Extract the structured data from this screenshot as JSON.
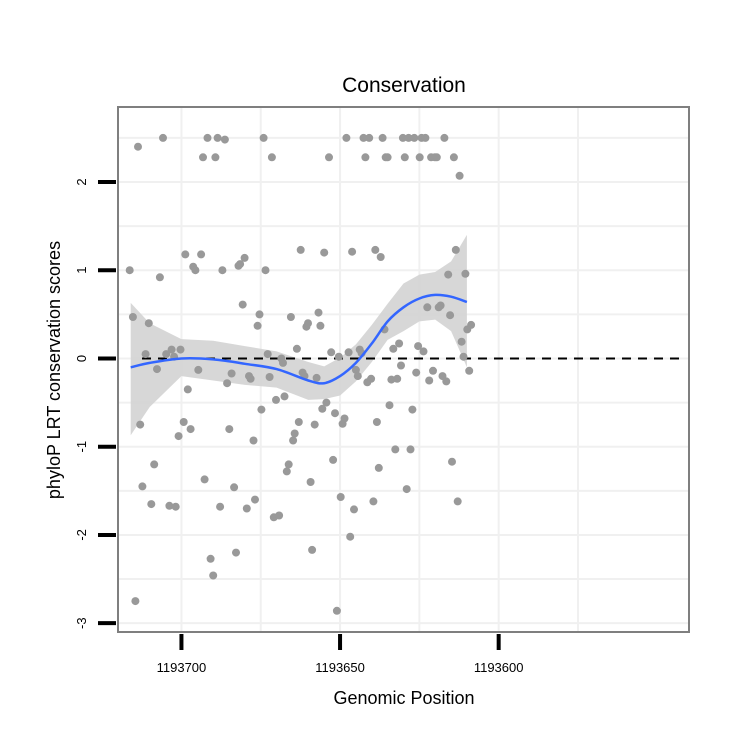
{
  "chart_data": {
    "type": "scatter",
    "title": "Conservation",
    "xlabel": "Genomic Position",
    "ylabel": "phyloP LRT conservation scores",
    "x_reversed": true,
    "xlim": [
      1193720,
      1193540
    ],
    "ylim": [
      -3.1,
      2.85
    ],
    "x_ticks": [
      1193700,
      1193650,
      1193600
    ],
    "x_tick_labels": [
      "1193700",
      "1193650",
      "1193600"
    ],
    "y_ticks": [
      -3,
      -2,
      -1,
      0,
      1,
      2
    ],
    "y_tick_labels": [
      "-3",
      "-2",
      "-1",
      "0",
      "1",
      "2"
    ],
    "reference_line": {
      "y": 0,
      "style": "dashed"
    },
    "colors": {
      "points": "#999999",
      "smooth_line": "#3366ff",
      "confidence_band": "#d3d3d3",
      "grid": "#f0f0f0",
      "panel_border": "#7f7f7f"
    },
    "points": [
      [
        1193716.3,
        1.0
      ],
      [
        1193715.3,
        0.47
      ],
      [
        1193714.5,
        -2.75
      ],
      [
        1193713.7,
        2.4
      ],
      [
        1193713.0,
        -0.75
      ],
      [
        1193712.3,
        -1.45
      ],
      [
        1193711.3,
        0.05
      ],
      [
        1193710.3,
        0.4
      ],
      [
        1193709.5,
        -1.65
      ],
      [
        1193708.6,
        -1.2
      ],
      [
        1193707.7,
        -0.12
      ],
      [
        1193706.8,
        0.92
      ],
      [
        1193705.8,
        2.5
      ],
      [
        1193704.8,
        0.05
      ],
      [
        1193703.8,
        -1.67
      ],
      [
        1193703.1,
        0.1
      ],
      [
        1193702.3,
        0.02
      ],
      [
        1193701.8,
        -1.68
      ],
      [
        1193700.9,
        -0.88
      ],
      [
        1193700.3,
        0.1
      ],
      [
        1193699.3,
        -0.72
      ],
      [
        1193698.8,
        1.18
      ],
      [
        1193698.0,
        -0.35
      ],
      [
        1193697.1,
        -0.8
      ],
      [
        1193696.3,
        1.04
      ],
      [
        1193695.6,
        1.0
      ],
      [
        1193694.7,
        -0.13
      ],
      [
        1193693.8,
        1.18
      ],
      [
        1193693.2,
        2.28
      ],
      [
        1193692.7,
        -1.37
      ],
      [
        1193691.8,
        2.5
      ],
      [
        1193690.8,
        -2.27
      ],
      [
        1193690.0,
        -2.46
      ],
      [
        1193689.3,
        2.28
      ],
      [
        1193688.6,
        2.5
      ],
      [
        1193687.8,
        -1.68
      ],
      [
        1193687.1,
        1.0
      ],
      [
        1193686.3,
        2.48
      ],
      [
        1193685.6,
        -0.28
      ],
      [
        1193684.9,
        -0.8
      ],
      [
        1193684.2,
        -0.17
      ],
      [
        1193683.4,
        -1.46
      ],
      [
        1193682.8,
        -2.2
      ],
      [
        1193682.0,
        1.05
      ],
      [
        1193681.5,
        1.07
      ],
      [
        1193680.7,
        0.61
      ],
      [
        1193680.1,
        1.14
      ],
      [
        1193679.4,
        -1.7
      ],
      [
        1193678.7,
        -0.2
      ],
      [
        1193678.2,
        -0.23
      ],
      [
        1193677.3,
        -0.93
      ],
      [
        1193676.8,
        -1.6
      ],
      [
        1193676.0,
        0.37
      ],
      [
        1193675.4,
        0.5
      ],
      [
        1193674.8,
        -0.58
      ],
      [
        1193674.1,
        2.5
      ],
      [
        1193673.5,
        1.0
      ],
      [
        1193672.8,
        0.05
      ],
      [
        1193672.2,
        -0.21
      ],
      [
        1193671.5,
        2.28
      ],
      [
        1193670.9,
        -1.8
      ],
      [
        1193670.2,
        -0.47
      ],
      [
        1193669.2,
        -1.78
      ],
      [
        1193668.5,
        0.0
      ],
      [
        1193668.0,
        -0.05
      ],
      [
        1193667.5,
        -0.43
      ],
      [
        1193666.8,
        -1.28
      ],
      [
        1193666.2,
        -1.2
      ],
      [
        1193665.5,
        0.47
      ],
      [
        1193664.8,
        -0.93
      ],
      [
        1193664.3,
        -0.85
      ],
      [
        1193663.6,
        0.11
      ],
      [
        1193663.0,
        -0.72
      ],
      [
        1193662.4,
        1.23
      ],
      [
        1193661.8,
        -0.16
      ],
      [
        1193661.2,
        -0.2
      ],
      [
        1193660.6,
        0.36
      ],
      [
        1193660.1,
        0.4
      ],
      [
        1193659.3,
        -1.4
      ],
      [
        1193658.8,
        -2.17
      ],
      [
        1193658.0,
        -0.75
      ],
      [
        1193657.4,
        -0.22
      ],
      [
        1193656.8,
        0.52
      ],
      [
        1193656.2,
        0.37
      ],
      [
        1193655.6,
        -0.57
      ],
      [
        1193655.0,
        1.2
      ],
      [
        1193654.3,
        -0.5
      ],
      [
        1193653.5,
        2.28
      ],
      [
        1193652.8,
        0.07
      ],
      [
        1193652.2,
        -1.15
      ],
      [
        1193651.6,
        -0.62
      ],
      [
        1193651.0,
        -2.86
      ],
      [
        1193650.4,
        0.02
      ],
      [
        1193649.8,
        -1.57
      ],
      [
        1193649.2,
        -0.74
      ],
      [
        1193648.6,
        -0.68
      ],
      [
        1193648.0,
        2.5
      ],
      [
        1193647.3,
        0.07
      ],
      [
        1193646.8,
        -2.02
      ],
      [
        1193646.2,
        1.21
      ],
      [
        1193645.6,
        -1.71
      ],
      [
        1193645.0,
        -0.13
      ],
      [
        1193644.4,
        -0.2
      ],
      [
        1193643.8,
        0.1
      ],
      [
        1193643.2,
        0.06
      ],
      [
        1193642.6,
        2.5
      ],
      [
        1193642.0,
        2.28
      ],
      [
        1193641.4,
        -0.27
      ],
      [
        1193640.8,
        2.5
      ],
      [
        1193640.2,
        -0.23
      ],
      [
        1193639.5,
        -1.62
      ],
      [
        1193638.9,
        1.23
      ],
      [
        1193638.4,
        -0.72
      ],
      [
        1193637.8,
        -1.24
      ],
      [
        1193637.2,
        1.15
      ],
      [
        1193636.6,
        2.5
      ],
      [
        1193636.0,
        0.33
      ],
      [
        1193635.6,
        2.28
      ],
      [
        1193635.0,
        2.28
      ],
      [
        1193634.4,
        -0.53
      ],
      [
        1193633.8,
        -0.24
      ],
      [
        1193633.2,
        0.11
      ],
      [
        1193632.6,
        -1.03
      ],
      [
        1193632.0,
        -0.23
      ],
      [
        1193631.4,
        0.17
      ],
      [
        1193630.8,
        -0.08
      ],
      [
        1193630.2,
        2.5
      ],
      [
        1193629.6,
        2.28
      ],
      [
        1193629.0,
        -1.48
      ],
      [
        1193628.4,
        2.5
      ],
      [
        1193627.8,
        -1.03
      ],
      [
        1193627.2,
        -0.58
      ],
      [
        1193626.6,
        2.5
      ],
      [
        1193626.0,
        -0.16
      ],
      [
        1193625.4,
        0.14
      ],
      [
        1193624.9,
        2.28
      ],
      [
        1193624.3,
        2.5
      ],
      [
        1193623.7,
        0.08
      ],
      [
        1193623.1,
        2.5
      ],
      [
        1193622.5,
        0.58
      ],
      [
        1193621.9,
        -0.25
      ],
      [
        1193621.3,
        2.28
      ],
      [
        1193620.7,
        -0.14
      ],
      [
        1193620.1,
        2.28
      ],
      [
        1193619.5,
        2.28
      ],
      [
        1193618.9,
        0.58
      ],
      [
        1193618.3,
        0.6
      ],
      [
        1193617.7,
        -0.2
      ],
      [
        1193617.1,
        2.5
      ],
      [
        1193616.5,
        -0.26
      ],
      [
        1193615.9,
        0.95
      ],
      [
        1193615.3,
        0.49
      ],
      [
        1193614.7,
        -1.17
      ],
      [
        1193614.1,
        2.28
      ],
      [
        1193613.5,
        1.23
      ],
      [
        1193612.9,
        -1.62
      ],
      [
        1193612.3,
        2.07
      ],
      [
        1193611.7,
        0.19
      ],
      [
        1193611.1,
        0.02
      ],
      [
        1193610.5,
        0.96
      ],
      [
        1193609.9,
        0.33
      ],
      [
        1193609.3,
        -0.14
      ],
      [
        1193608.7,
        0.38
      ]
    ],
    "smooth_fit": {
      "x": [
        1193716.0,
        1193710.0,
        1193700.0,
        1193690.0,
        1193680.0,
        1193670.0,
        1193660.0,
        1193655.0,
        1193650.0,
        1193645.0,
        1193640.0,
        1193635.0,
        1193630.0,
        1193625.0,
        1193620.0,
        1193615.0,
        1193610.0
      ],
      "y": [
        -0.1,
        -0.05,
        0.0,
        -0.01,
        -0.06,
        -0.12,
        -0.25,
        -0.28,
        -0.2,
        -0.05,
        0.17,
        0.42,
        0.58,
        0.68,
        0.72,
        0.7,
        0.64
      ],
      "upper": [
        0.63,
        0.4,
        0.22,
        0.2,
        0.14,
        0.08,
        -0.04,
        -0.09,
        0.01,
        0.16,
        0.38,
        0.62,
        0.85,
        0.95,
        0.98,
        1.1,
        1.4
      ],
      "lower": [
        -0.87,
        -0.55,
        -0.2,
        -0.25,
        -0.3,
        -0.33,
        -0.47,
        -0.46,
        -0.42,
        -0.26,
        -0.04,
        0.21,
        0.31,
        0.42,
        0.44,
        0.31,
        -0.1
      ]
    }
  }
}
